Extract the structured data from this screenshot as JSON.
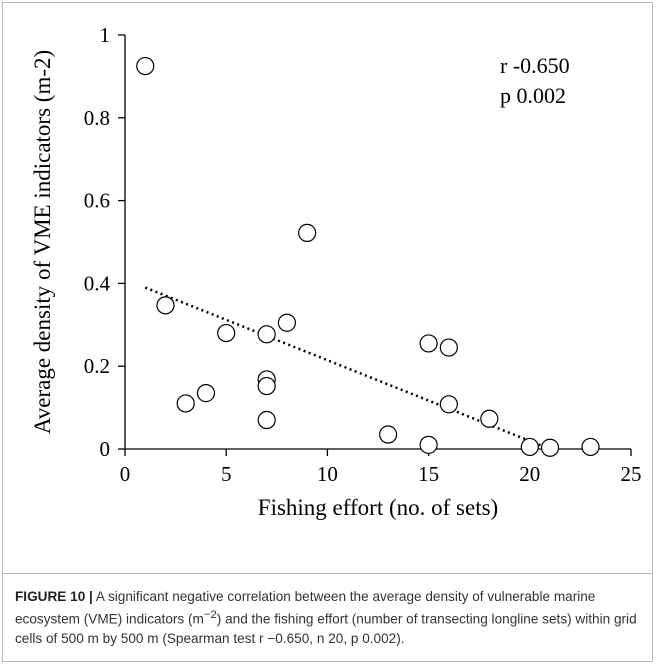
{
  "chart_data": {
    "type": "scatter",
    "xlabel": "Fishing effort (no. of sets)",
    "ylabel": "Average density of VME indicators (m-2)",
    "xlim": [
      0,
      25
    ],
    "ylim": [
      0,
      1
    ],
    "xticks": [
      0,
      5,
      10,
      15,
      20,
      25
    ],
    "yticks": [
      0,
      0.2,
      0.4,
      0.6,
      0.8,
      1
    ],
    "ytick_labels": [
      "0",
      "0.2",
      "0.4",
      "0.6",
      "0.8",
      "1"
    ],
    "grid": false,
    "points": [
      {
        "x": 1,
        "y": 0.925
      },
      {
        "x": 2,
        "y": 0.347
      },
      {
        "x": 3,
        "y": 0.11
      },
      {
        "x": 4,
        "y": 0.135
      },
      {
        "x": 5,
        "y": 0.28
      },
      {
        "x": 7,
        "y": 0.277
      },
      {
        "x": 7,
        "y": 0.168
      },
      {
        "x": 7,
        "y": 0.152
      },
      {
        "x": 7,
        "y": 0.07
      },
      {
        "x": 8,
        "y": 0.305
      },
      {
        "x": 9,
        "y": 0.522
      },
      {
        "x": 13,
        "y": 0.035
      },
      {
        "x": 15,
        "y": 0.255
      },
      {
        "x": 15,
        "y": 0.01
      },
      {
        "x": 16,
        "y": 0.245
      },
      {
        "x": 16,
        "y": 0.108
      },
      {
        "x": 18,
        "y": 0.073
      },
      {
        "x": 20,
        "y": 0.005
      },
      {
        "x": 21,
        "y": 0.003
      },
      {
        "x": 23,
        "y": 0.005
      }
    ],
    "trendline": {
      "style": "dotted",
      "x": [
        1,
        21
      ],
      "y": [
        0.39,
        0.0
      ]
    },
    "annotations": [
      "r -0.650",
      "p 0.002"
    ]
  },
  "caption": {
    "label": "FIGURE 10 |",
    "text_before_sup": " A significant negative correlation between the average density of vulnerable marine ecosystem (VME) indicators (m",
    "sup": "−2",
    "text_after_sup": ") and the fishing effort (number of transecting longline sets) within grid cells of 500 m by 500 m (Spearman test r −0.650, n 20, p 0.002)."
  }
}
